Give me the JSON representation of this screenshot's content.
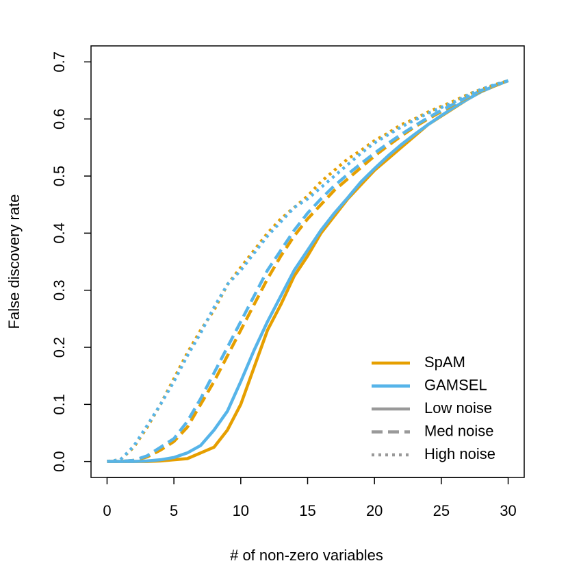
{
  "chart_data": {
    "type": "line",
    "xlabel": "# of non-zero variables",
    "ylabel": "False discovery rate",
    "x": [
      0,
      1,
      2,
      3,
      4,
      5,
      6,
      7,
      8,
      9,
      10,
      11,
      12,
      13,
      14,
      15,
      16,
      17,
      18,
      19,
      20,
      21,
      22,
      23,
      24,
      25,
      26,
      27,
      28,
      29,
      30
    ],
    "series": [
      {
        "color": "#e69f00",
        "dash": "solid",
        "values": [
          0,
          0,
          0,
          0,
          0.001,
          0.003,
          0.005,
          0.015,
          0.025,
          0.055,
          0.1,
          0.165,
          0.23,
          0.275,
          0.325,
          0.36,
          0.4,
          0.43,
          0.46,
          0.485,
          0.51,
          0.53,
          0.55,
          0.57,
          0.59,
          0.605,
          0.62,
          0.635,
          0.648,
          0.658,
          0.667
        ]
      },
      {
        "color": "#56b4e9",
        "dash": "solid",
        "values": [
          0,
          0,
          0,
          0.001,
          0.003,
          0.007,
          0.015,
          0.028,
          0.055,
          0.088,
          0.14,
          0.195,
          0.245,
          0.29,
          0.335,
          0.37,
          0.405,
          0.435,
          0.462,
          0.49,
          0.513,
          0.535,
          0.555,
          0.573,
          0.59,
          0.606,
          0.621,
          0.635,
          0.648,
          0.658,
          0.667
        ]
      },
      {
        "color": "#e69f00",
        "dash": "dashed",
        "values": [
          0,
          0,
          0.002,
          0.008,
          0.02,
          0.035,
          0.06,
          0.1,
          0.14,
          0.185,
          0.23,
          0.275,
          0.32,
          0.36,
          0.395,
          0.425,
          0.45,
          0.475,
          0.495,
          0.515,
          0.535,
          0.553,
          0.57,
          0.586,
          0.6,
          0.613,
          0.626,
          0.638,
          0.649,
          0.658,
          0.667
        ]
      },
      {
        "color": "#56b4e9",
        "dash": "dashed",
        "values": [
          0,
          0,
          0.002,
          0.01,
          0.025,
          0.04,
          0.07,
          0.11,
          0.155,
          0.2,
          0.245,
          0.29,
          0.335,
          0.37,
          0.405,
          0.435,
          0.46,
          0.483,
          0.503,
          0.522,
          0.54,
          0.557,
          0.573,
          0.588,
          0.602,
          0.615,
          0.627,
          0.639,
          0.65,
          0.659,
          0.667
        ]
      },
      {
        "color": "#e69f00",
        "dash": "dotted",
        "values": [
          0,
          0.003,
          0.025,
          0.06,
          0.1,
          0.145,
          0.19,
          0.23,
          0.265,
          0.31,
          0.34,
          0.37,
          0.4,
          0.425,
          0.445,
          0.465,
          0.49,
          0.51,
          0.53,
          0.545,
          0.562,
          0.575,
          0.59,
          0.6,
          0.612,
          0.622,
          0.632,
          0.643,
          0.652,
          0.66,
          0.667
        ]
      },
      {
        "color": "#56b4e9",
        "dash": "dotted",
        "values": [
          0,
          0.003,
          0.027,
          0.063,
          0.1,
          0.14,
          0.185,
          0.225,
          0.27,
          0.31,
          0.335,
          0.365,
          0.395,
          0.42,
          0.445,
          0.46,
          0.48,
          0.5,
          0.52,
          0.54,
          0.558,
          0.572,
          0.586,
          0.598,
          0.61,
          0.62,
          0.63,
          0.642,
          0.652,
          0.66,
          0.667
        ]
      }
    ],
    "legend": [
      {
        "label": "SpAM",
        "color": "#e69f00",
        "dash": "solid"
      },
      {
        "label": "GAMSEL",
        "color": "#56b4e9",
        "dash": "solid"
      },
      {
        "label": "Low noise",
        "color": "#999999",
        "dash": "solid"
      },
      {
        "label": "Med noise",
        "color": "#999999",
        "dash": "dashed"
      },
      {
        "label": "High noise",
        "color": "#999999",
        "dash": "dotted"
      }
    ],
    "legend_position": "bottom-right",
    "xlim": [
      -1.2,
      31.2
    ],
    "ylim": [
      -0.028,
      0.728
    ],
    "xticks": [
      0,
      5,
      10,
      15,
      20,
      25,
      30
    ],
    "yticks": [
      {
        "value": 0,
        "label": "0.0"
      },
      0.1,
      0.2,
      0.3,
      0.4,
      0.5,
      0.6,
      0.7
    ],
    "grid": false
  }
}
